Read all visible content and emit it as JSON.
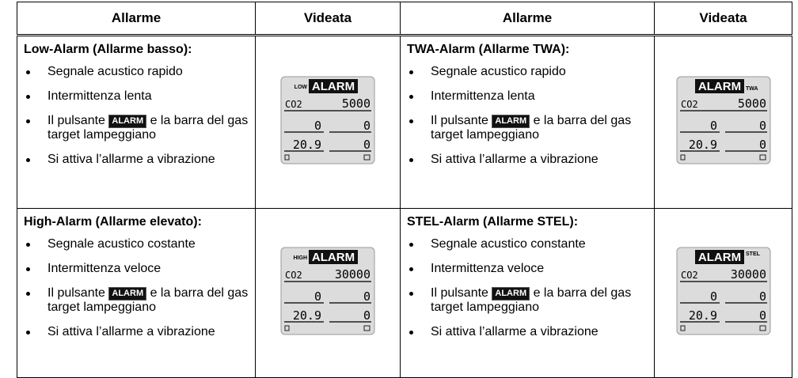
{
  "table": {
    "headers": [
      "Allarme",
      "Videata",
      "Allarme",
      "Videata"
    ],
    "rows": [
      [
        {
          "title": "Low-Alarm (Allarme basso):",
          "items": [
            {
              "text": "Segnale acustico rapido"
            },
            {
              "text": "Intermittenza lenta"
            },
            {
              "before": "Il pulsante",
              "button": "ALARM",
              "after": "e la barra del gas target lampeggiano"
            },
            {
              "text": "Si attiva l’allarme a vibrazione"
            }
          ]
        },
        {
          "prefix": "LOW",
          "label": "ALARM",
          "gas": "CO2",
          "reading": "5000",
          "cells": [
            "0",
            "0",
            "20.9",
            "0"
          ]
        },
        {
          "title": "TWA-Alarm (Allarme TWA):",
          "items": [
            {
              "text": "Segnale acustico rapido"
            },
            {
              "text": "Intermittenza lenta"
            },
            {
              "before": "Il pulsante",
              "button": "ALARM",
              "after": "e la barra del gas target lampeggiano"
            },
            {
              "text": "Si attiva l’allarme a vibrazione"
            }
          ]
        },
        {
          "suffix": "TWA",
          "label": "ALARM",
          "gas": "CO2",
          "reading": "5000",
          "cells": [
            "0",
            "0",
            "20.9",
            "0"
          ]
        }
      ],
      [
        {
          "title": "High-Alarm (Allarme elevato):",
          "items": [
            {
              "text": "Segnale acustico costante"
            },
            {
              "text": "Intermittenza veloce"
            },
            {
              "before": "Il pulsante",
              "button": "ALARM",
              "after": "e la barra del gas target lampeggiano"
            },
            {
              "text": "Si attiva l’allarme a vibrazione"
            }
          ]
        },
        {
          "prefix": "HIGH",
          "label": "ALARM",
          "gas": "CO2",
          "reading": "30000",
          "cells": [
            "0",
            "0",
            "20.9",
            "0"
          ]
        },
        {
          "title": "STEL-Alarm (Allarme STEL):",
          "items": [
            {
              "text": "Segnale acustico constante"
            },
            {
              "text": "Intermittenza veloce"
            },
            {
              "before": "Il pulsante",
              "button": "ALARM",
              "after": "e la barra del gas target lampeggiano"
            },
            {
              "text": "Si attiva l’allarme a vibrazione"
            }
          ]
        },
        {
          "suffix": "STEL",
          "label": "ALARM",
          "gas": "CO2",
          "reading": "30000",
          "cells": [
            "0",
            "0",
            "20.9",
            "0"
          ]
        }
      ]
    ]
  }
}
